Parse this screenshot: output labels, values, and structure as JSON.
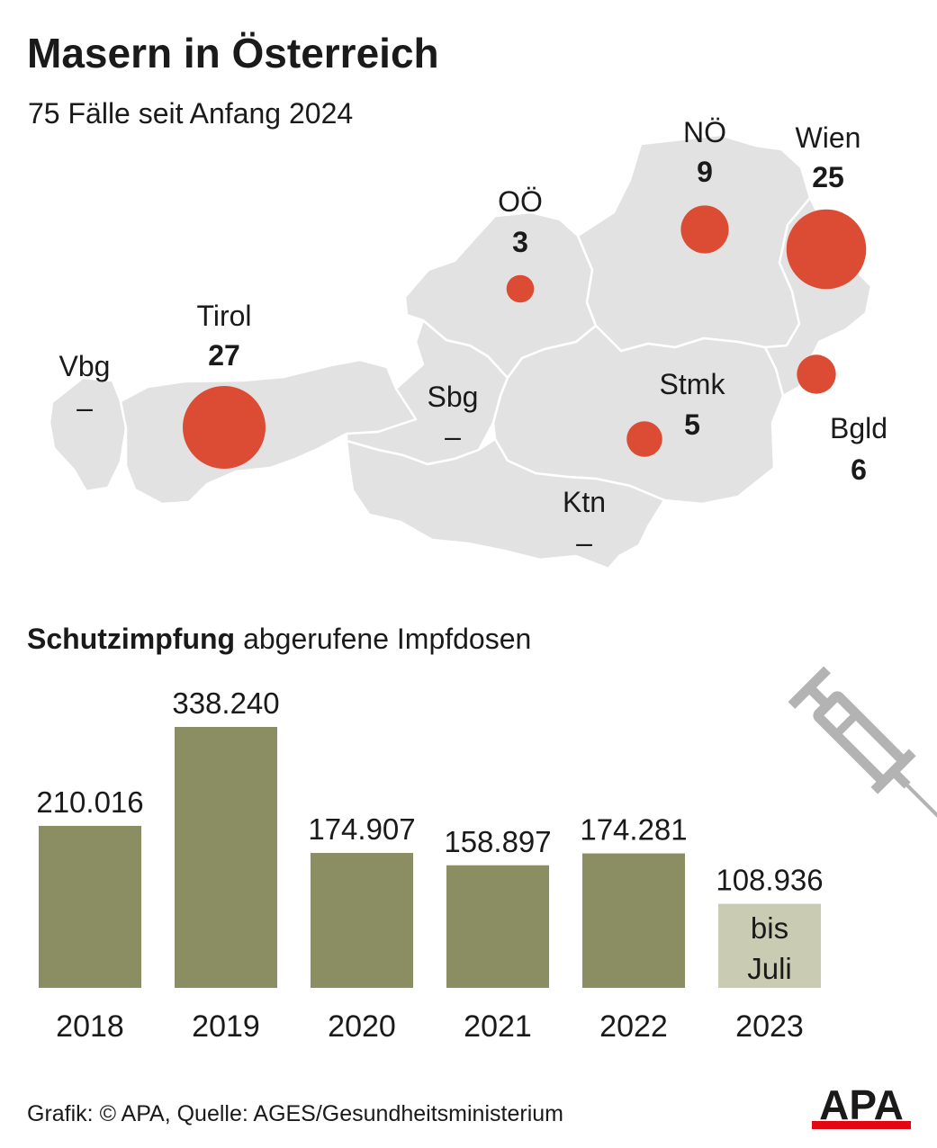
{
  "title": "Masern in Österreich",
  "subtitle": "75 Fälle seit Anfang 2024",
  "colors": {
    "map_fill": "#e2e2e2",
    "map_border": "#ffffff",
    "bubble": "#dc4c35",
    "bar": "#8b8e62",
    "bar_partial": "#c9cbb3",
    "syringe": "#b3b3b3",
    "apa_red": "#e30613"
  },
  "chart_data": [
    {
      "type": "bubble-map",
      "title": "Masern in Österreich",
      "subtitle": "75 Fälle seit Anfang 2024",
      "regions": [
        {
          "name": "Vbg",
          "value": "–"
        },
        {
          "name": "Tirol",
          "value": "27"
        },
        {
          "name": "Sbg",
          "value": "–"
        },
        {
          "name": "OÖ",
          "value": "3"
        },
        {
          "name": "NÖ",
          "value": "9"
        },
        {
          "name": "Wien",
          "value": "25"
        },
        {
          "name": "Stmk",
          "value": "5"
        },
        {
          "name": "Bgld",
          "value": "6"
        },
        {
          "name": "Ktn",
          "value": "–"
        }
      ]
    },
    {
      "type": "bar",
      "title_bold": "Schutzimpfung",
      "title_rest": "abgerufene Impfdosen",
      "categories": [
        "2018",
        "2019",
        "2020",
        "2021",
        "2022",
        "2023"
      ],
      "values": [
        210016,
        338240,
        174907,
        158897,
        174281,
        108936
      ],
      "value_labels": [
        "210.016",
        "338.240",
        "174.907",
        "158.897",
        "174.281",
        "108.936"
      ],
      "partial_index": 5,
      "partial_note": [
        "bis",
        "Juli"
      ]
    }
  ],
  "footer": "Grafik: © APA, Quelle: AGES/Gesundheitsministerium",
  "logo_text": "APA"
}
